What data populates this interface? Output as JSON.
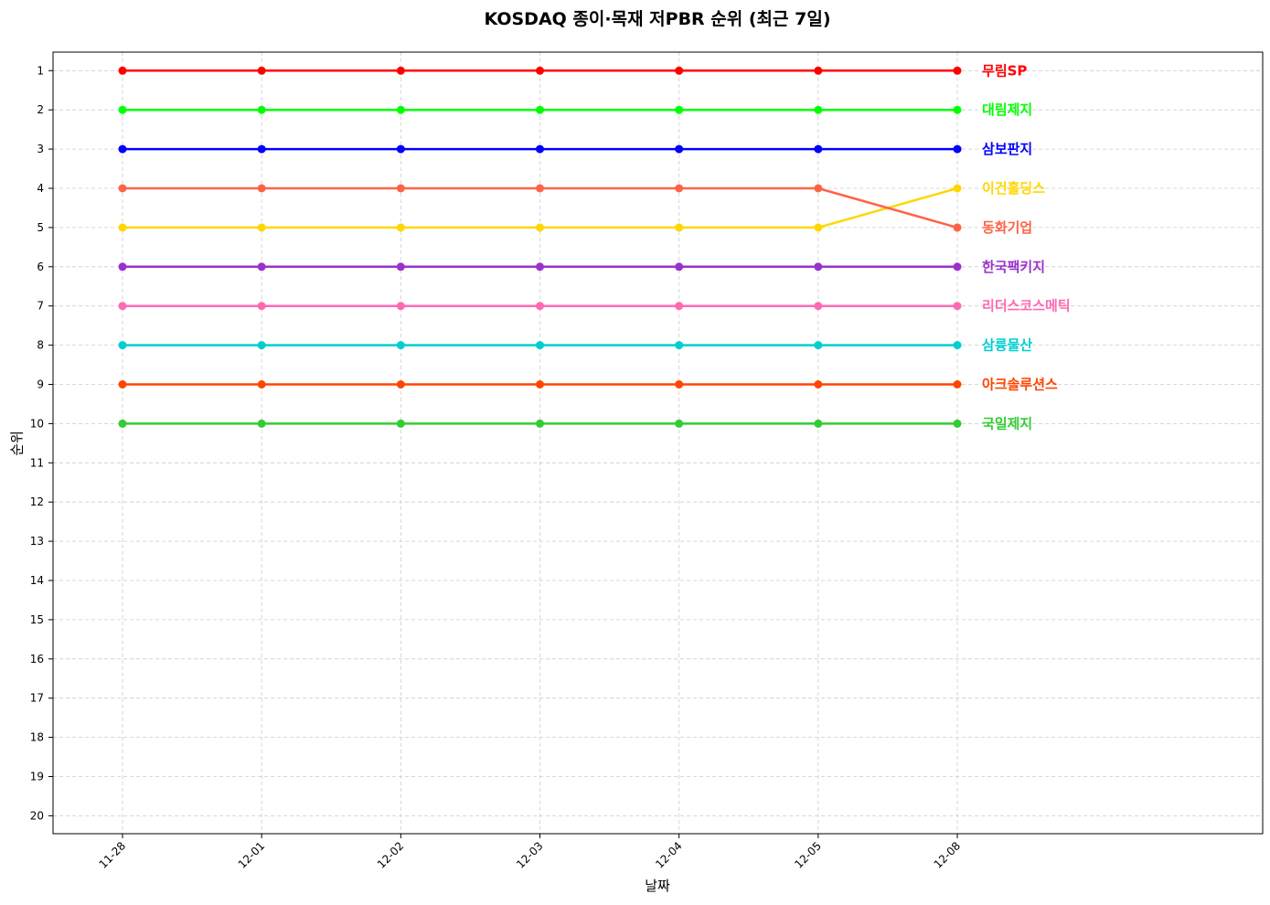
{
  "chart_data": {
    "type": "line",
    "title": "KOSDAQ 종이·목재 저PBR 순위 (최근 7일)",
    "xlabel": "날짜",
    "ylabel": "순위",
    "x": [
      "11-28",
      "12-01",
      "12-02",
      "12-03",
      "12-04",
      "12-05",
      "12-08"
    ],
    "y_ticks": [
      1,
      2,
      3,
      4,
      5,
      6,
      7,
      8,
      9,
      10,
      11,
      12,
      13,
      14,
      15,
      16,
      17,
      18,
      19,
      20
    ],
    "ylim": [
      20.5,
      0.5
    ],
    "y_inverted": true,
    "grid": true,
    "legend": "labels at right end of each line",
    "series": [
      {
        "name": "무림SP",
        "color": "#ff0000",
        "values": [
          1,
          1,
          1,
          1,
          1,
          1,
          1
        ]
      },
      {
        "name": "대림제지",
        "color": "#00ff00",
        "values": [
          2,
          2,
          2,
          2,
          2,
          2,
          2
        ]
      },
      {
        "name": "삼보판지",
        "color": "#0000ff",
        "values": [
          3,
          3,
          3,
          3,
          3,
          3,
          3
        ]
      },
      {
        "name": "이건홀딩스",
        "color": "#ffd700",
        "values": [
          5,
          5,
          5,
          5,
          5,
          5,
          4
        ]
      },
      {
        "name": "동화기업",
        "color": "#ff6347",
        "values": [
          4,
          4,
          4,
          4,
          4,
          4,
          5
        ]
      },
      {
        "name": "한국팩키지",
        "color": "#9932cc",
        "values": [
          6,
          6,
          6,
          6,
          6,
          6,
          6
        ]
      },
      {
        "name": "리더스코스메틱",
        "color": "#ff69b4",
        "values": [
          7,
          7,
          7,
          7,
          7,
          7,
          7
        ]
      },
      {
        "name": "삼륭물산",
        "color": "#00ced1",
        "values": [
          8,
          8,
          8,
          8,
          8,
          8,
          8
        ]
      },
      {
        "name": "아크솔루션스",
        "color": "#ff4500",
        "values": [
          9,
          9,
          9,
          9,
          9,
          9,
          9
        ]
      },
      {
        "name": "국일제지",
        "color": "#32cd32",
        "values": [
          10,
          10,
          10,
          10,
          10,
          10,
          10
        ]
      }
    ]
  }
}
